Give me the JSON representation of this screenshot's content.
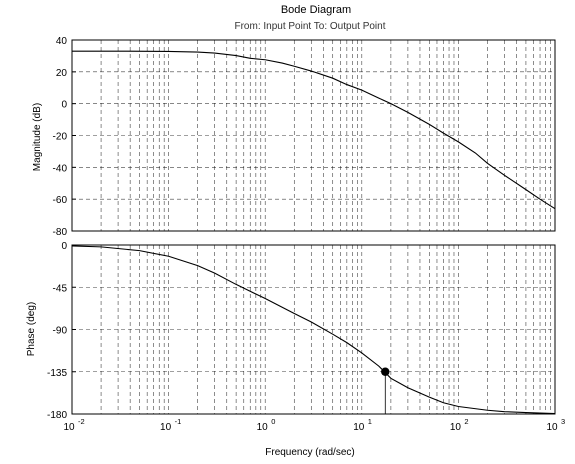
{
  "title": "Bode Diagram",
  "subtitle": "From: Input Point  To: Output Point",
  "chart_data": [
    {
      "type": "line",
      "panel": "magnitude",
      "ylabel": "Magnitude (dB)",
      "xscale": "log",
      "xlim": [
        0.01,
        1000
      ],
      "ylim": [
        -80,
        40
      ],
      "yticks": [
        40,
        20,
        0,
        -20,
        -40,
        -60,
        -80
      ],
      "grid": true,
      "series": [
        {
          "x": [
            0.01,
            0.03,
            0.1,
            0.2,
            0.3,
            0.5,
            0.7,
            1,
            1.5,
            2,
            3,
            5,
            7,
            10,
            15,
            20,
            30,
            50,
            70,
            100,
            150,
            200,
            300,
            500,
            700,
            1000
          ],
          "values": [
            33,
            33,
            32.8,
            32.4,
            31.8,
            30.2,
            28.5,
            27.6,
            25.5,
            23.5,
            20.5,
            16,
            12,
            8.5,
            3.5,
            0,
            -5.5,
            -13,
            -18.5,
            -24,
            -31,
            -37.5,
            -45,
            -54,
            -60,
            -66
          ]
        }
      ]
    },
    {
      "type": "line",
      "panel": "phase",
      "ylabel": "Phase (deg)",
      "xlabel": "Frequency  (rad/sec)",
      "xscale": "log",
      "xlim": [
        0.01,
        1000
      ],
      "ylim": [
        -180,
        0
      ],
      "yticks": [
        0,
        -45,
        -90,
        -135,
        -180
      ],
      "xticks": [
        "10^-2",
        "10^-1",
        "10^0",
        "10^1",
        "10^2",
        "10^3"
      ],
      "grid": true,
      "series": [
        {
          "x": [
            0.01,
            0.02,
            0.05,
            0.1,
            0.2,
            0.3,
            0.5,
            1,
            2,
            3,
            5,
            7,
            10,
            15,
            20,
            30,
            50,
            70,
            100,
            200,
            300,
            500,
            700,
            1000
          ],
          "values": [
            -1,
            -2,
            -6,
            -12,
            -22,
            -30,
            -42,
            -57,
            -73,
            -82,
            -95,
            -104,
            -115,
            -129,
            -142,
            -152,
            -162,
            -168,
            -172,
            -176,
            -177.5,
            -178.5,
            -179,
            -179.5
          ]
        }
      ],
      "marker": {
        "x": 17.5,
        "y": -135
      }
    }
  ]
}
